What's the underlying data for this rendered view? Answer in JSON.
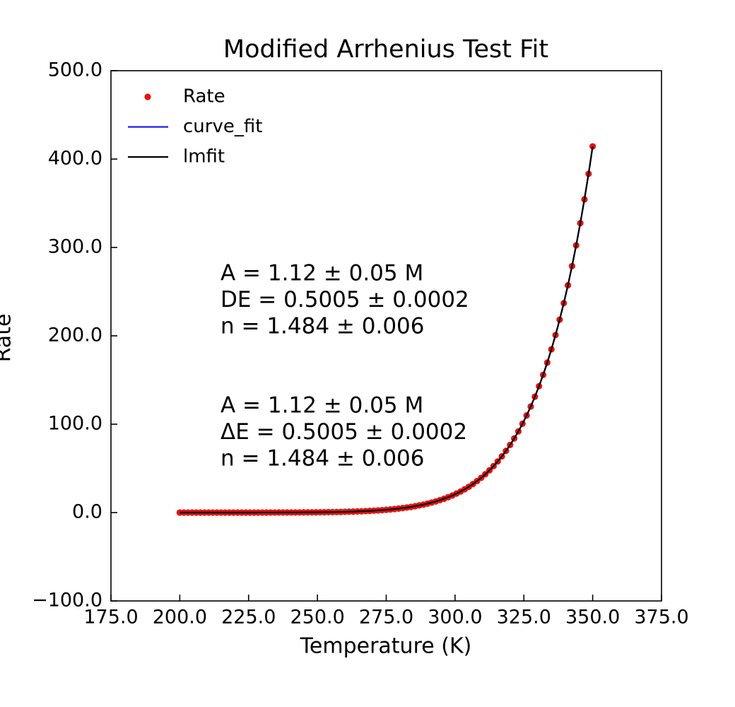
{
  "chart_data": {
    "type": "line",
    "title": "Modified Arrhenius Test Fit",
    "xlabel": "Temperature (K)",
    "ylabel": "Rate",
    "xlim": [
      175,
      375
    ],
    "ylim": [
      -100,
      500
    ],
    "xticks": [
      {
        "value": 175,
        "label": "175.0"
      },
      {
        "value": 200,
        "label": "200.0"
      },
      {
        "value": 225,
        "label": "225.0"
      },
      {
        "value": 250,
        "label": "250.0"
      },
      {
        "value": 275,
        "label": "275.0"
      },
      {
        "value": 300,
        "label": "300.0"
      },
      {
        "value": 325,
        "label": "325.0"
      },
      {
        "value": 350,
        "label": "350.0"
      },
      {
        "value": 375,
        "label": "375.0"
      }
    ],
    "yticks": [
      {
        "value": -100,
        "label": "−100.0"
      },
      {
        "value": 0,
        "label": "0.0"
      },
      {
        "value": 100,
        "label": "100.0"
      },
      {
        "value": 200,
        "label": "200.0"
      },
      {
        "value": 300,
        "label": "300.0"
      },
      {
        "value": 400,
        "label": "400.0"
      },
      {
        "value": 500,
        "label": "500.0"
      }
    ],
    "grid": false,
    "legend_loc": "upper left",
    "annotations": [
      {
        "lines": [
          "A = 1.12 ± 0.05 M",
          "DE = 0.5005 ± 0.0002",
          "n = 1.484 ± 0.006"
        ]
      },
      {
        "lines": [
          "A = 1.12 ± 0.05 M",
          "ΔE = 0.5005 ± 0.0002",
          "n = 1.484 ± 0.006"
        ]
      }
    ],
    "x": [
      200,
      201.5,
      203,
      204.5,
      206,
      207.5,
      209,
      210.5,
      212,
      213.5,
      215,
      216.5,
      218,
      219.5,
      221,
      222.5,
      224,
      225.5,
      227,
      228.5,
      230,
      231.5,
      233,
      234.5,
      236,
      237.5,
      239,
      240.5,
      242,
      243.5,
      245,
      246.5,
      248,
      249.5,
      251,
      252.5,
      254,
      255.5,
      257,
      258.5,
      260,
      261.5,
      263,
      264.5,
      266,
      267.5,
      269,
      270.5,
      272,
      273.5,
      275,
      276.5,
      278,
      279.5,
      281,
      282.5,
      284,
      285.5,
      287,
      288.5,
      290,
      291.5,
      293,
      294.5,
      296,
      297.5,
      299,
      300.5,
      302,
      303.5,
      305,
      306.5,
      308,
      309.5,
      311,
      312.5,
      314,
      315.5,
      317,
      318.5,
      320,
      321.5,
      323,
      324.5,
      326,
      327.5,
      329,
      330.5,
      332,
      333.5,
      335,
      336.5,
      338,
      339.5,
      341,
      342.5,
      344,
      345.5,
      347,
      348.5,
      350
    ],
    "series": [
      {
        "name": "Rate",
        "mode": "markers",
        "color": "#e8120c",
        "values": [
          0.0007,
          0.0009,
          0.0011,
          0.0014,
          0.0017,
          0.0021,
          0.0026,
          0.0033,
          0.004,
          0.0049,
          0.006,
          0.0073,
          0.0089,
          0.0108,
          0.013,
          0.0157,
          0.0189,
          0.0226,
          0.0271,
          0.0324,
          0.0386,
          0.0459,
          0.0545,
          0.0645,
          0.0762,
          0.0898,
          0.106,
          0.124,
          0.146,
          0.17,
          0.199,
          0.232,
          0.27,
          0.313,
          0.363,
          0.42,
          0.486,
          0.561,
          0.646,
          0.743,
          0.853,
          0.978,
          1.12,
          1.28,
          1.46,
          1.664,
          1.895,
          2.154,
          2.444,
          2.77,
          3.136,
          3.545,
          4.002,
          4.513,
          5.082,
          5.715,
          6.425,
          7.209,
          8.08,
          9.046,
          10.117,
          11.301,
          12.61,
          14.055,
          15.649,
          17.403,
          19.347,
          21.474,
          23.813,
          26.38,
          29.196,
          32.282,
          35.66,
          39.354,
          43.389,
          47.792,
          52.623,
          57.864,
          63.574,
          69.79,
          76.55,
          83.896,
          91.87,
          100.517,
          109.889,
          120.033,
          131.071,
          142.959,
          155.812,
          169.698,
          184.687,
          200.854,
          218.278,
          237.043,
          257.232,
          278.941,
          302.385,
          327.475,
          354.422,
          383.343,
          414.358
        ]
      },
      {
        "name": "curve_fit",
        "mode": "lines",
        "color": "#1f1fe8",
        "values": [
          0.0007,
          0.0009,
          0.0011,
          0.0014,
          0.0017,
          0.0021,
          0.0026,
          0.0033,
          0.004,
          0.0049,
          0.006,
          0.0073,
          0.0089,
          0.0108,
          0.013,
          0.0157,
          0.0189,
          0.0226,
          0.0271,
          0.0324,
          0.0386,
          0.0459,
          0.0545,
          0.0645,
          0.0762,
          0.0898,
          0.106,
          0.124,
          0.146,
          0.17,
          0.199,
          0.232,
          0.27,
          0.313,
          0.363,
          0.42,
          0.486,
          0.561,
          0.646,
          0.743,
          0.853,
          0.978,
          1.12,
          1.28,
          1.46,
          1.664,
          1.895,
          2.154,
          2.444,
          2.77,
          3.136,
          3.545,
          4.002,
          4.513,
          5.082,
          5.715,
          6.425,
          7.209,
          8.08,
          9.046,
          10.117,
          11.301,
          12.61,
          14.055,
          15.649,
          17.403,
          19.347,
          21.474,
          23.813,
          26.38,
          29.196,
          32.282,
          35.66,
          39.354,
          43.389,
          47.792,
          52.623,
          57.864,
          63.574,
          69.79,
          76.55,
          83.896,
          91.87,
          100.517,
          109.889,
          120.033,
          131.071,
          142.959,
          155.812,
          169.698,
          184.687,
          200.854,
          218.278,
          237.043,
          257.232,
          278.941,
          302.385,
          327.475,
          354.422,
          383.343,
          414.358
        ]
      },
      {
        "name": "lmfit",
        "mode": "lines",
        "color": "#000000",
        "values": [
          0.0007,
          0.0009,
          0.0011,
          0.0014,
          0.0017,
          0.0021,
          0.0026,
          0.0033,
          0.004,
          0.0049,
          0.006,
          0.0073,
          0.0089,
          0.0108,
          0.013,
          0.0157,
          0.0189,
          0.0226,
          0.0271,
          0.0324,
          0.0386,
          0.0459,
          0.0545,
          0.0645,
          0.0762,
          0.0898,
          0.106,
          0.124,
          0.146,
          0.17,
          0.199,
          0.232,
          0.27,
          0.313,
          0.363,
          0.42,
          0.486,
          0.561,
          0.646,
          0.743,
          0.853,
          0.978,
          1.12,
          1.28,
          1.46,
          1.664,
          1.895,
          2.154,
          2.444,
          2.77,
          3.136,
          3.545,
          4.002,
          4.513,
          5.082,
          5.715,
          6.425,
          7.209,
          8.08,
          9.046,
          10.117,
          11.301,
          12.61,
          14.055,
          15.649,
          17.403,
          19.347,
          21.474,
          23.813,
          26.38,
          29.196,
          32.282,
          35.66,
          39.354,
          43.389,
          47.792,
          52.623,
          57.864,
          63.574,
          69.79,
          76.55,
          83.896,
          91.87,
          100.517,
          109.889,
          120.033,
          131.071,
          142.959,
          155.812,
          169.698,
          184.687,
          200.854,
          218.278,
          237.043,
          257.232,
          278.941,
          302.385,
          327.475,
          354.422,
          383.343,
          414.358
        ]
      }
    ]
  }
}
